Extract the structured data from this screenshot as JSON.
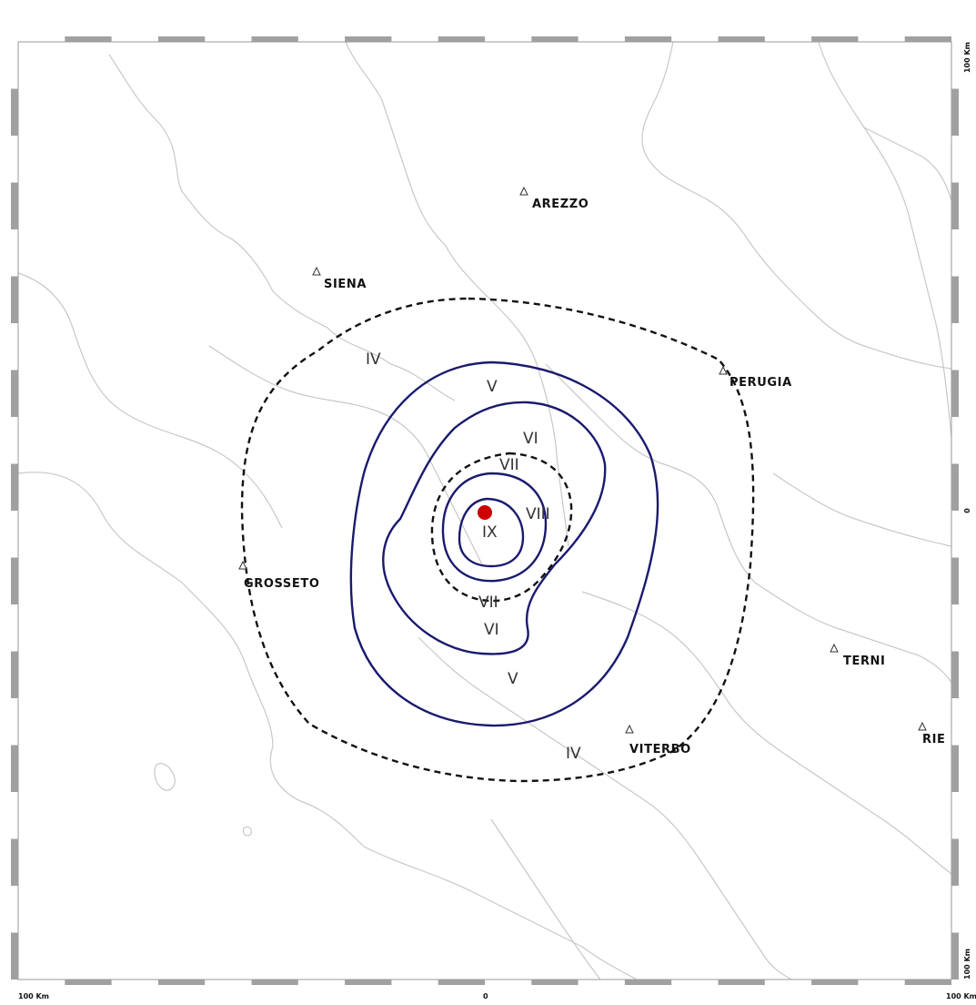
{
  "map": {
    "cities": [
      {
        "name": "AREZZO"
      },
      {
        "name": "SIENA"
      },
      {
        "name": "PERUGIA"
      },
      {
        "name": "GROSSETO"
      },
      {
        "name": "TERNI"
      },
      {
        "name": "VITERBO"
      },
      {
        "name": "RIE"
      }
    ],
    "isoseismals": [
      {
        "intensity": "IV",
        "style": "dashed"
      },
      {
        "intensity": "V",
        "style": "solid"
      },
      {
        "intensity": "VI",
        "style": "solid"
      },
      {
        "intensity": "VII",
        "style": "dashed"
      },
      {
        "intensity": "VIII",
        "style": "solid"
      },
      {
        "intensity": "IX",
        "style": "solid"
      }
    ],
    "intensity_labels": [
      "IV",
      "V",
      "VI",
      "VII",
      "VIII",
      "IX",
      "VII",
      "VI",
      "V",
      "IV"
    ],
    "scale": {
      "bottom_left": "100 Km",
      "bottom_center": "0",
      "bottom_right": "100 Km",
      "right_top": "100 Km",
      "right_middle": "0",
      "right_bottom": "100 Km"
    },
    "colors": {
      "solid_isoseismal": "#1a1a6e",
      "dashed_isoseismal": "#111111",
      "epicenter": "#cc0000",
      "boundaries": "#c8c8c8",
      "frame_stripe": "#a0a0a0"
    },
    "epicenter_icon": "red-dot"
  }
}
